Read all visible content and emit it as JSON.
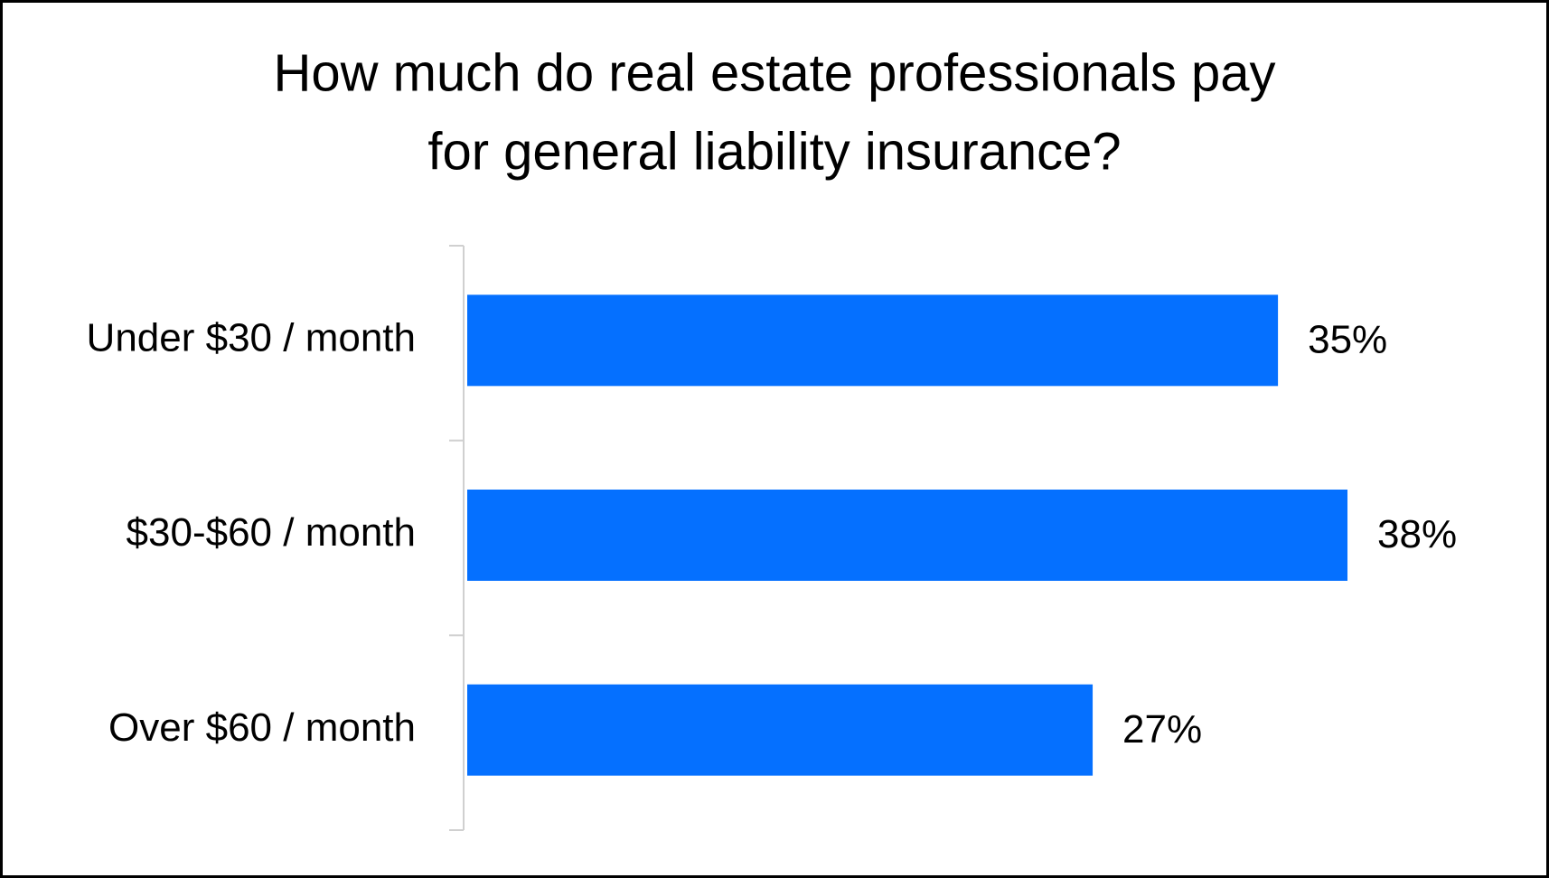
{
  "chart_data": {
    "type": "bar",
    "orientation": "horizontal",
    "title": [
      "How much do real estate professionals pay",
      "for general liability insurance?"
    ],
    "categories": [
      "Under $30 / month",
      "$30-$60 / month",
      "Over $60 / month"
    ],
    "values": [
      35,
      38,
      27
    ],
    "value_labels": [
      "35%",
      "38%",
      "27%"
    ],
    "color": "#0570ff",
    "grid": false
  }
}
